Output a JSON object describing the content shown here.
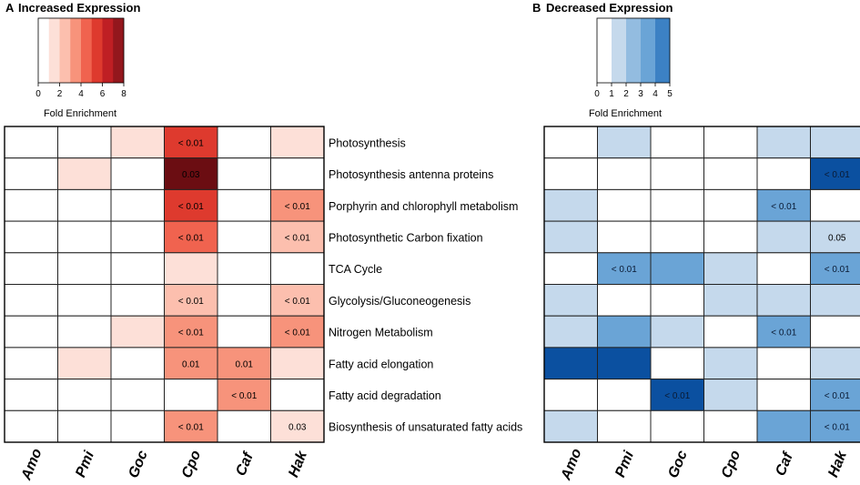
{
  "chart_data": [
    {
      "type": "heatmap",
      "panel_letter": "A",
      "title": "Increased Expression",
      "legend": {
        "ticks": [
          "0",
          "2",
          "4",
          "6",
          "8"
        ],
        "label": "Fold Enrichment",
        "levels": [
          0,
          1,
          2,
          3,
          4,
          5,
          6,
          7
        ],
        "colors": [
          "#ffffff",
          "#fde0d8",
          "#fcbfae",
          "#f7937b",
          "#f0634f",
          "#de3a2e",
          "#bf1f24",
          "#93171d",
          "#6b0d12"
        ]
      },
      "columns": [
        "Amo",
        "Pmi",
        "Goc",
        "Cpo",
        "Caf",
        "Hak"
      ],
      "rows": [
        "Photosynthesis",
        "Photosynthesis antenna proteins",
        "Porphyrin and chlorophyll metabolism",
        "Photosynthetic Carbon fixation",
        "TCA Cycle",
        "Glycolysis/Gluconeogenesis",
        "Nitrogen Metabolism",
        "Fatty acid elongation",
        "Fatty acid degradation",
        "Biosynthesis of unsaturated fatty acids"
      ],
      "values": [
        [
          0,
          0,
          1,
          5,
          0,
          1
        ],
        [
          0,
          1,
          0,
          8,
          0,
          0
        ],
        [
          0,
          0,
          0,
          5,
          0,
          3
        ],
        [
          0,
          0,
          0,
          4,
          0,
          2
        ],
        [
          0,
          0,
          0,
          1,
          0,
          0
        ],
        [
          0,
          0,
          0,
          2,
          0,
          2
        ],
        [
          0,
          0,
          1,
          3,
          0,
          3
        ],
        [
          0,
          1,
          0,
          3,
          3,
          1
        ],
        [
          0,
          0,
          0,
          0,
          3,
          0
        ],
        [
          0,
          0,
          0,
          3,
          0,
          1
        ]
      ],
      "labels": [
        [
          "",
          "",
          "",
          "< 0.01",
          "",
          ""
        ],
        [
          "",
          "",
          "",
          "0.03",
          "",
          ""
        ],
        [
          "",
          "",
          "",
          "< 0.01",
          "",
          "< 0.01"
        ],
        [
          "",
          "",
          "",
          "< 0.01",
          "",
          "< 0.01"
        ],
        [
          "",
          "",
          "",
          "",
          "",
          ""
        ],
        [
          "",
          "",
          "",
          "< 0.01",
          "",
          "< 0.01"
        ],
        [
          "",
          "",
          "",
          "< 0.01",
          "",
          "< 0.01"
        ],
        [
          "",
          "",
          "",
          "0.01",
          "0.01",
          ""
        ],
        [
          "",
          "",
          "",
          "",
          "< 0.01",
          ""
        ],
        [
          "",
          "",
          "",
          "< 0.01",
          "",
          "0.03"
        ]
      ]
    },
    {
      "type": "heatmap",
      "panel_letter": "B",
      "title": "Decreased Expression",
      "legend": {
        "ticks": [
          "0",
          "1",
          "2",
          "3",
          "4",
          "5"
        ],
        "label": "Fold Enrichment",
        "levels": [
          0,
          1,
          2,
          3,
          4
        ],
        "colors": [
          "#ffffff",
          "#c5d9ec",
          "#93bce0",
          "#6aa4d6",
          "#3c81c4",
          "#0b50a0"
        ]
      },
      "columns": [
        "Amo",
        "Pmi",
        "Goc",
        "Cpo",
        "Caf",
        "Hak"
      ],
      "rows": [
        "Photosynthesis",
        "Photosynthesis antenna proteins",
        "Porphyrin and chlorophyll metabolism",
        "Photosynthetic Carbon fixation",
        "TCA Cycle",
        "Glycolysis/Gluconeogenesis",
        "Nitrogen Metabolism",
        "Fatty acid elongation",
        "Fatty acid degradation",
        "Biosynthesis of unsaturated fatty acids"
      ],
      "values": [
        [
          0,
          1,
          0,
          0,
          1,
          1
        ],
        [
          0,
          0,
          0,
          0,
          0,
          5
        ],
        [
          1,
          0,
          0,
          0,
          3,
          0
        ],
        [
          1,
          0,
          0,
          0,
          1,
          1
        ],
        [
          0,
          3,
          3,
          1,
          0,
          3
        ],
        [
          1,
          0,
          0,
          1,
          1,
          1
        ],
        [
          1,
          3,
          1,
          0,
          3,
          0
        ],
        [
          5,
          5,
          0,
          1,
          0,
          1
        ],
        [
          0,
          0,
          5,
          1,
          0,
          3
        ],
        [
          1,
          0,
          0,
          0,
          3,
          3
        ]
      ],
      "labels": [
        [
          "",
          "",
          "",
          "",
          "",
          ""
        ],
        [
          "",
          "",
          "",
          "",
          "",
          "< 0.01"
        ],
        [
          "",
          "",
          "",
          "",
          "< 0.01",
          ""
        ],
        [
          "",
          "",
          "",
          "",
          "",
          "0.05"
        ],
        [
          "",
          "< 0.01",
          "",
          "",
          "",
          "< 0.01"
        ],
        [
          "",
          "",
          "",
          "",
          "",
          ""
        ],
        [
          "",
          "",
          "",
          "",
          "< 0.01",
          ""
        ],
        [
          "",
          "",
          "",
          "",
          "",
          ""
        ],
        [
          "",
          "",
          "< 0.01",
          "",
          "",
          "< 0.01"
        ],
        [
          "",
          "",
          "",
          "",
          "",
          "< 0.01"
        ]
      ]
    }
  ]
}
